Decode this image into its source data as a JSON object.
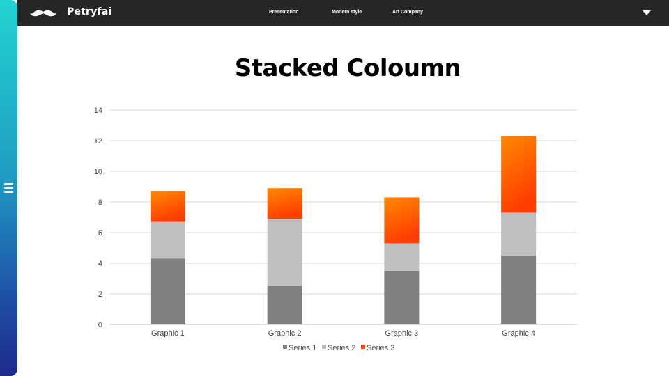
{
  "header": {
    "brand": "Petryfai",
    "logo_icon": "mustache-icon",
    "nav": [
      "Presentation",
      "Modern style",
      "Art Company"
    ],
    "dropdown_icon": "caret-down-icon"
  },
  "sidebar": {
    "menu_icon": "hamburger-menu-icon"
  },
  "colors": {
    "series1": "#808080",
    "series2": "#bfbfbf",
    "series3_top": "#ff8a00",
    "series3_bottom": "#ff3d00",
    "sidebar_top": "#22d3d1",
    "sidebar_bottom": "#1e2a8e",
    "topbar": "#262626"
  },
  "chart_data": {
    "type": "bar",
    "stacked": true,
    "title": "Stacked Coloumn",
    "categories": [
      "Graphic 1",
      "Graphic 2",
      "Graphic 3",
      "Graphic 4"
    ],
    "series": [
      {
        "name": "Series 1",
        "values": [
          4.3,
          2.5,
          3.5,
          4.5
        ]
      },
      {
        "name": "Series 2",
        "values": [
          2.4,
          4.4,
          1.8,
          2.8
        ]
      },
      {
        "name": "Series 3",
        "values": [
          2.0,
          2.0,
          3.0,
          5.0
        ]
      }
    ],
    "ylim": [
      0,
      14
    ],
    "yticks": [
      0,
      2,
      4,
      6,
      8,
      10,
      12,
      14
    ],
    "grid": true,
    "legend": "bottom-center"
  }
}
